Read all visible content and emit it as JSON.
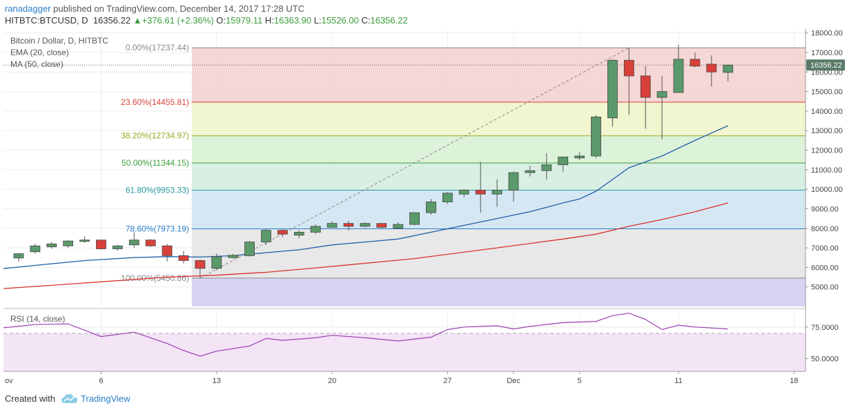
{
  "header": {
    "author": "ranadagger",
    "published_text": "published on TradingView.com, December 14, 2017 17:28 UTC",
    "symbol": "HITBTC:BTCUSD, D",
    "last": "16356.22",
    "change": "+376.61 (+2.36%)",
    "open_label": "O:",
    "open": "15979.11",
    "high_label": "H:",
    "high": "16363.90",
    "low_label": "L:",
    "low": "15526.00",
    "close_label": "C:",
    "close": "16356.22"
  },
  "legend": {
    "title": "Bitcoin / Dollar, D, HITBTC",
    "ema": "EMA (20, close)",
    "ma": "MA (50, close)",
    "rsi": "RSI (14, close)"
  },
  "footer": {
    "created_with": "Created with",
    "brand": "TradingView"
  },
  "colors": {
    "up": "#5a9a6a",
    "down": "#d9403a",
    "ema": "#1f5fa8",
    "ma": "#d9302a",
    "rsi": "#9b3fb0",
    "fib": [
      "#f3d0ce",
      "#eef3c8",
      "#d6f0d2",
      "#d4ecdf",
      "#cfe3f2",
      "#e4e4e4",
      "#cfcdf0"
    ]
  },
  "chart_data": [
    {
      "type": "candlestick",
      "title": "Bitcoin / Dollar, D, HITBTC",
      "ylim": [
        4000,
        18200
      ],
      "y_ticks": [
        5000,
        6000,
        7000,
        8000,
        9000,
        10000,
        11000,
        12000,
        13000,
        14000,
        15000,
        16000,
        17000,
        18000
      ],
      "y_tick_labels": [
        "5000.00",
        "6000.00",
        "7000.00",
        "8000.00",
        "9000.00",
        "10000.00",
        "11000.00",
        "12000.00",
        "13000.00",
        "14000.00",
        "15000.00",
        "16000.00",
        "17000.00",
        "18000.00"
      ],
      "x_ticks": [
        {
          "label": "ov",
          "day": -1
        },
        {
          "label": "6",
          "day": 6
        },
        {
          "label": "13",
          "day": 13
        },
        {
          "label": "20",
          "day": 20
        },
        {
          "label": "27",
          "day": 27
        },
        {
          "label": "Dec",
          "day": 31
        },
        {
          "label": "5",
          "day": 35
        },
        {
          "label": "11",
          "day": 41
        },
        {
          "label": "18",
          "day": 48
        }
      ],
      "candles": [
        {
          "day": 1,
          "o": 6480,
          "h": 6650,
          "l": 6300,
          "c": 6700
        },
        {
          "day": 2,
          "o": 6800,
          "h": 7200,
          "l": 6700,
          "c": 7100
        },
        {
          "day": 3,
          "o": 7050,
          "h": 7300,
          "l": 6950,
          "c": 7200
        },
        {
          "day": 4,
          "o": 7100,
          "h": 7400,
          "l": 7000,
          "c": 7350
        },
        {
          "day": 5,
          "o": 7380,
          "h": 7600,
          "l": 7250,
          "c": 7400
        },
        {
          "day": 6,
          "o": 7400,
          "h": 7400,
          "l": 6900,
          "c": 6950
        },
        {
          "day": 7,
          "o": 6950,
          "h": 7150,
          "l": 6850,
          "c": 7100
        },
        {
          "day": 8,
          "o": 7150,
          "h": 7800,
          "l": 7000,
          "c": 7400
        },
        {
          "day": 9,
          "o": 7400,
          "h": 7450,
          "l": 7050,
          "c": 7100
        },
        {
          "day": 10,
          "o": 7100,
          "h": 7200,
          "l": 6300,
          "c": 6600
        },
        {
          "day": 11,
          "o": 6600,
          "h": 6850,
          "l": 6200,
          "c": 6350
        },
        {
          "day": 12,
          "o": 6350,
          "h": 6400,
          "l": 5450,
          "c": 5950
        },
        {
          "day": 13,
          "o": 5950,
          "h": 6700,
          "l": 5850,
          "c": 6550
        },
        {
          "day": 14,
          "o": 6500,
          "h": 6700,
          "l": 6450,
          "c": 6620
        },
        {
          "day": 15,
          "o": 6600,
          "h": 7350,
          "l": 6550,
          "c": 7300
        },
        {
          "day": 16,
          "o": 7300,
          "h": 7950,
          "l": 7150,
          "c": 7900
        },
        {
          "day": 17,
          "o": 7900,
          "h": 7950,
          "l": 7550,
          "c": 7700
        },
        {
          "day": 18,
          "o": 7650,
          "h": 7900,
          "l": 7500,
          "c": 7800
        },
        {
          "day": 19,
          "o": 7800,
          "h": 8200,
          "l": 7700,
          "c": 8100
        },
        {
          "day": 20,
          "o": 8050,
          "h": 8350,
          "l": 8050,
          "c": 8250
        },
        {
          "day": 21,
          "o": 8250,
          "h": 8380,
          "l": 7900,
          "c": 8100
        },
        {
          "day": 22,
          "o": 8100,
          "h": 8300,
          "l": 8050,
          "c": 8250
        },
        {
          "day": 23,
          "o": 8250,
          "h": 8250,
          "l": 8000,
          "c": 8050
        },
        {
          "day": 24,
          "o": 8000,
          "h": 8300,
          "l": 7950,
          "c": 8200
        },
        {
          "day": 25,
          "o": 8200,
          "h": 8800,
          "l": 8150,
          "c": 8800
        },
        {
          "day": 26,
          "o": 8800,
          "h": 9500,
          "l": 8700,
          "c": 9350
        },
        {
          "day": 27,
          "o": 9350,
          "h": 9850,
          "l": 9250,
          "c": 9800
        },
        {
          "day": 28,
          "o": 9750,
          "h": 10000,
          "l": 9600,
          "c": 9950
        },
        {
          "day": 29,
          "o": 9950,
          "h": 11400,
          "l": 8800,
          "c": 9750
        },
        {
          "day": 30,
          "o": 9750,
          "h": 10500,
          "l": 9100,
          "c": 9950
        },
        {
          "day": 31,
          "o": 9950,
          "h": 10900,
          "l": 9350,
          "c": 10850
        },
        {
          "day": 32,
          "o": 10850,
          "h": 11200,
          "l": 10650,
          "c": 10950
        },
        {
          "day": 33,
          "o": 10950,
          "h": 11850,
          "l": 10500,
          "c": 11250
        },
        {
          "day": 34,
          "o": 11250,
          "h": 11650,
          "l": 10900,
          "c": 11650
        },
        {
          "day": 35,
          "o": 11600,
          "h": 11900,
          "l": 11500,
          "c": 11700
        },
        {
          "day": 36,
          "o": 11700,
          "h": 13800,
          "l": 11600,
          "c": 13700
        },
        {
          "day": 37,
          "o": 13650,
          "h": 16650,
          "l": 13200,
          "c": 16600
        },
        {
          "day": 38,
          "o": 16600,
          "h": 17237,
          "l": 13800,
          "c": 15800
        },
        {
          "day": 39,
          "o": 15800,
          "h": 16300,
          "l": 13100,
          "c": 14700
        },
        {
          "day": 40,
          "o": 14700,
          "h": 15800,
          "l": 12550,
          "c": 15000
        },
        {
          "day": 41,
          "o": 14950,
          "h": 17400,
          "l": 14950,
          "c": 16650
        },
        {
          "day": 42,
          "o": 16650,
          "h": 17000,
          "l": 16250,
          "c": 16300
        },
        {
          "day": 43,
          "o": 16400,
          "h": 16850,
          "l": 15250,
          "c": 16000
        },
        {
          "day": 44,
          "o": 15979.11,
          "h": 16363.9,
          "l": 15526,
          "c": 16356.22
        }
      ],
      "ema_20": [
        [
          -1,
          5850
        ],
        [
          2,
          6100
        ],
        [
          5,
          6350
        ],
        [
          8,
          6500
        ],
        [
          10,
          6550
        ],
        [
          12,
          6530
        ],
        [
          14,
          6600
        ],
        [
          16,
          6750
        ],
        [
          18,
          6900
        ],
        [
          20,
          7150
        ],
        [
          22,
          7300
        ],
        [
          24,
          7450
        ],
        [
          26,
          7800
        ],
        [
          28,
          8150
        ],
        [
          30,
          8500
        ],
        [
          32,
          8850
        ],
        [
          34,
          9300
        ],
        [
          35,
          9500
        ],
        [
          36,
          9900
        ],
        [
          37,
          10500
        ],
        [
          38,
          11100
        ],
        [
          40,
          11700
        ],
        [
          42,
          12500
        ],
        [
          44,
          13250
        ]
      ],
      "ma_50": [
        [
          -1,
          4850
        ],
        [
          5,
          5200
        ],
        [
          10,
          5500
        ],
        [
          13,
          5600
        ],
        [
          16,
          5750
        ],
        [
          20,
          6050
        ],
        [
          25,
          6450
        ],
        [
          30,
          7000
        ],
        [
          34,
          7450
        ],
        [
          36,
          7700
        ],
        [
          38,
          8100
        ],
        [
          40,
          8450
        ],
        [
          42,
          8850
        ],
        [
          44,
          9300
        ]
      ],
      "fib_levels": [
        {
          "ratio": "0.00%",
          "value": 17237.44,
          "label": "0.00%(17237.44)"
        },
        {
          "ratio": "23.60%",
          "value": 14455.81,
          "label": "23.60%(14455.81)"
        },
        {
          "ratio": "38.20%",
          "value": 12734.97,
          "label": "38.20%(12734.97)"
        },
        {
          "ratio": "50.00%",
          "value": 11344.15,
          "label": "50.00%(11344.15)"
        },
        {
          "ratio": "61.80%",
          "value": 9953.33,
          "label": "61.80%(9953.33)"
        },
        {
          "ratio": "78.60%",
          "value": 7973.19,
          "label": "78.60%(7973.19)"
        },
        {
          "ratio": "100.00%",
          "value": 5450.86,
          "label": "100.00%(5450.86)"
        }
      ],
      "fib_lowest_band_bottom": 4000,
      "trend_line": [
        [
          12,
          5450.86
        ],
        [
          38,
          17237.44
        ]
      ],
      "last_price": 16356.22,
      "last_price_label": "16356.22"
    },
    {
      "type": "line",
      "title": "RSI (14, close)",
      "ylim": [
        40,
        88
      ],
      "y_ticks": [
        50,
        75
      ],
      "y_tick_labels": [
        "50.0000",
        "75.0000"
      ],
      "bands": [
        30,
        70
      ],
      "series": [
        {
          "name": "RSI (14, close)",
          "values": [
            [
              -1,
              73
            ],
            [
              2,
              77
            ],
            [
              4,
              77.5
            ],
            [
              6,
              67.5
            ],
            [
              8,
              71
            ],
            [
              10,
              62
            ],
            [
              11,
              56.5
            ],
            [
              12,
              52
            ],
            [
              13,
              56
            ],
            [
              15,
              60
            ],
            [
              16,
              66
            ],
            [
              17,
              64.5
            ],
            [
              19,
              66.5
            ],
            [
              20,
              68.5
            ],
            [
              22,
              66.5
            ],
            [
              24,
              64
            ],
            [
              26,
              67
            ],
            [
              27,
              73
            ],
            [
              28,
              75
            ],
            [
              30,
              76
            ],
            [
              31,
              73.5
            ],
            [
              32,
              75.5
            ],
            [
              34,
              78.5
            ],
            [
              35,
              79
            ],
            [
              36,
              79.5
            ],
            [
              37,
              84
            ],
            [
              38,
              86
            ],
            [
              39,
              81
            ],
            [
              40,
              73
            ],
            [
              41,
              76.5
            ],
            [
              42,
              75
            ],
            [
              44,
              73.5
            ]
          ]
        }
      ]
    }
  ]
}
